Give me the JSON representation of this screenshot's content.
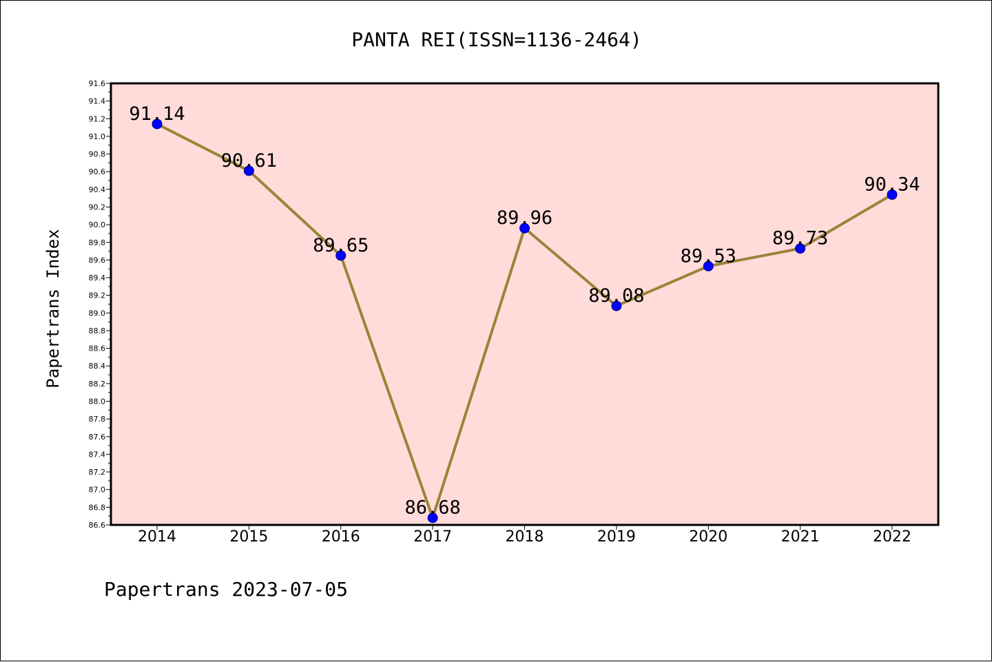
{
  "chart_data": {
    "type": "line",
    "title": "PANTA REI(ISSN=1136-2464)",
    "ylabel": "Papertrans Index",
    "xlabel": "",
    "categories": [
      "2014",
      "2015",
      "2016",
      "2017",
      "2018",
      "2019",
      "2020",
      "2021",
      "2022"
    ],
    "series": [
      {
        "values": [
          91.14,
          90.61,
          89.65,
          86.68,
          89.96,
          89.08,
          89.53,
          89.73,
          90.34
        ]
      }
    ],
    "data_labels": [
      "91.14",
      "90.61",
      "89.65",
      "86.68",
      "89.96",
      "89.08",
      "89.53",
      "89.73",
      "90.34"
    ],
    "ylim": [
      86.6,
      91.6
    ],
    "ytick_step": 0.2,
    "yticks": [
      "86.6",
      "86.8",
      "87.0",
      "87.2",
      "87.4",
      "87.6",
      "87.8",
      "88.0",
      "88.2",
      "88.4",
      "88.6",
      "88.8",
      "89.0",
      "89.2",
      "89.4",
      "89.6",
      "89.8",
      "90.0",
      "90.2",
      "90.4",
      "90.6",
      "90.8",
      "91.0",
      "91.2",
      "91.4",
      "91.6"
    ],
    "grid": false,
    "line_color": "#9a8438",
    "marker_color": "#0000ff",
    "plot_background": "#ffdcda",
    "footer": "Papertrans 2023-07-05"
  }
}
